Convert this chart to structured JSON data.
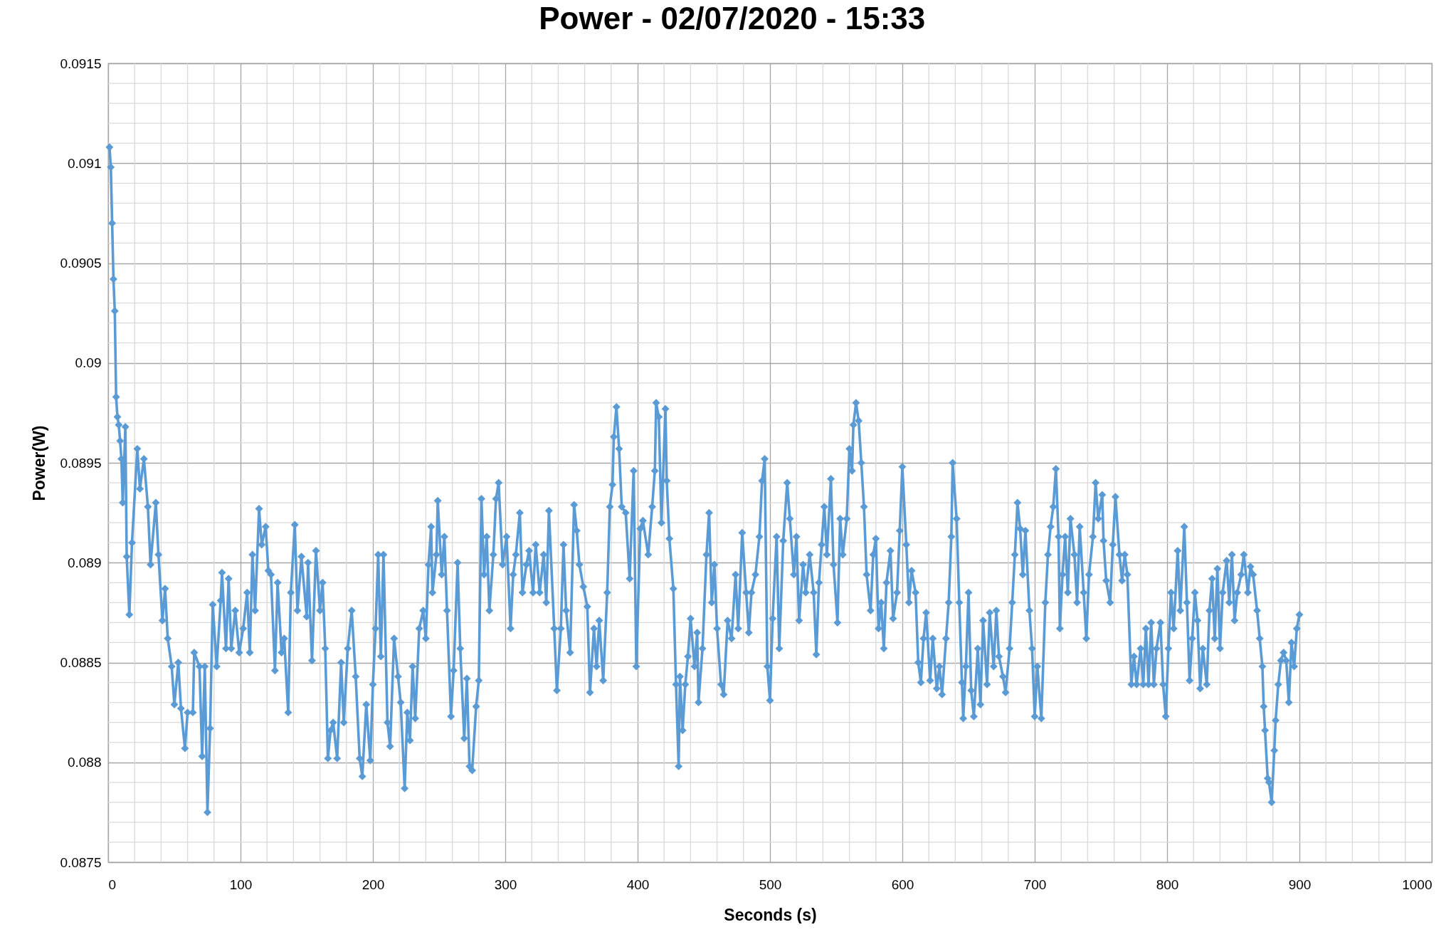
{
  "chart_data": {
    "type": "line",
    "title": "Power - 02/07/2020 - 15:33",
    "xlabel": "Seconds (s)",
    "ylabel": "Power(W)",
    "color": "#5b9bd5",
    "marker": "diamond",
    "line_style": "solid",
    "grid": true,
    "xlim": [
      0,
      1000
    ],
    "ylim": [
      0.0875,
      0.0915
    ],
    "xticks": [
      0,
      {
        "value": 20,
        "label": null
      },
      {
        "value": 40,
        "label": null
      },
      {
        "value": 60,
        "label": null
      },
      {
        "value": 80,
        "label": null
      },
      100,
      {
        "value": 120,
        "label": null
      },
      {
        "value": 140,
        "label": null
      },
      {
        "value": 160,
        "label": null
      },
      {
        "value": 180,
        "label": null
      },
      200,
      {
        "value": 220,
        "label": null
      },
      {
        "value": 240,
        "label": null
      },
      {
        "value": 260,
        "label": null
      },
      {
        "value": 280,
        "label": null
      },
      300,
      {
        "value": 320,
        "label": null
      },
      {
        "value": 340,
        "label": null
      },
      {
        "value": 360,
        "label": null
      },
      {
        "value": 380,
        "label": null
      },
      400,
      {
        "value": 420,
        "label": null
      },
      {
        "value": 440,
        "label": null
      },
      {
        "value": 460,
        "label": null
      },
      {
        "value": 480,
        "label": null
      },
      500,
      {
        "value": 520,
        "label": null
      },
      {
        "value": 540,
        "label": null
      },
      {
        "value": 560,
        "label": null
      },
      {
        "value": 580,
        "label": null
      },
      600,
      {
        "value": 620,
        "label": null
      },
      {
        "value": 640,
        "label": null
      },
      {
        "value": 660,
        "label": null
      },
      {
        "value": 680,
        "label": null
      },
      700,
      {
        "value": 720,
        "label": null
      },
      {
        "value": 740,
        "label": null
      },
      {
        "value": 760,
        "label": null
      },
      {
        "value": 780,
        "label": null
      },
      800,
      {
        "value": 820,
        "label": null
      },
      {
        "value": 840,
        "label": null
      },
      {
        "value": 860,
        "label": null
      },
      {
        "value": 880,
        "label": null
      },
      900,
      {
        "value": 920,
        "label": null
      },
      {
        "value": 940,
        "label": null
      },
      {
        "value": 960,
        "label": null
      },
      {
        "value": 980,
        "label": null
      },
      1000
    ],
    "yticks": [
      0.0875,
      {
        "value": 0.0876,
        "label": null
      },
      {
        "value": 0.0877,
        "label": null
      },
      {
        "value": 0.0878,
        "label": null
      },
      {
        "value": 0.0879,
        "label": null
      },
      0.088,
      {
        "value": 0.0881,
        "label": null
      },
      {
        "value": 0.0882,
        "label": null
      },
      {
        "value": 0.0883,
        "label": null
      },
      {
        "value": 0.0884,
        "label": null
      },
      0.0885,
      {
        "value": 0.0886,
        "label": null
      },
      {
        "value": 0.0887,
        "label": null
      },
      {
        "value": 0.0888,
        "label": null
      },
      {
        "value": 0.0889,
        "label": null
      },
      0.089,
      {
        "value": 0.0891,
        "label": null
      },
      {
        "value": 0.0892,
        "label": null
      },
      {
        "value": 0.0893,
        "label": null
      },
      {
        "value": 0.0894,
        "label": null
      },
      0.0895,
      {
        "value": 0.0896,
        "label": null
      },
      {
        "value": 0.0897,
        "label": null
      },
      {
        "value": 0.0898,
        "label": null
      },
      {
        "value": 0.0899,
        "label": null
      },
      0.09,
      {
        "value": 0.0901,
        "label": null
      },
      {
        "value": 0.0902,
        "label": null
      },
      {
        "value": 0.0903,
        "label": null
      },
      {
        "value": 0.0904,
        "label": null
      },
      0.0905,
      {
        "value": 0.0906,
        "label": null
      },
      {
        "value": 0.0907,
        "label": null
      },
      {
        "value": 0.0908,
        "label": null
      },
      {
        "value": 0.0909,
        "label": null
      },
      0.091,
      {
        "value": 0.0911,
        "label": null
      },
      {
        "value": 0.0912,
        "label": null
      },
      {
        "value": 0.0913,
        "label": null
      },
      {
        "value": 0.0914,
        "label": null
      },
      0.0915
    ],
    "x": [
      1,
      2,
      3,
      4,
      5,
      6,
      7,
      8,
      9,
      10,
      11,
      13,
      14,
      16,
      18,
      22,
      24,
      27,
      30,
      32,
      36,
      38,
      41,
      43,
      45,
      48,
      50,
      53,
      55,
      58,
      60,
      64,
      65,
      69,
      71,
      73,
      75,
      77,
      79,
      82,
      85,
      86,
      89,
      91,
      93,
      96,
      99,
      102,
      105,
      107,
      109,
      111,
      114,
      116,
      119,
      121,
      123,
      126,
      128,
      131,
      133,
      136,
      138,
      141,
      143,
      146,
      150,
      151,
      154,
      157,
      160,
      162,
      164,
      166,
      168,
      170,
      173,
      176,
      178,
      181,
      184,
      187,
      190,
      192,
      195,
      198,
      200,
      202,
      204,
      206,
      208,
      211,
      213,
      216,
      219,
      221,
      224,
      226,
      228,
      230,
      232,
      235,
      238,
      240,
      242,
      244,
      245,
      248,
      249,
      252,
      254,
      256,
      259,
      261,
      264,
      266,
      269,
      271,
      273,
      275,
      278,
      280,
      282,
      284,
      286,
      288,
      291,
      293,
      295,
      298,
      301,
      304,
      306,
      308,
      311,
      313,
      316,
      318,
      321,
      323,
      326,
      329,
      331,
      333,
      337,
      339,
      342,
      344,
      346,
      349,
      352,
      354,
      356,
      359,
      362,
      364,
      367,
      369,
      371,
      374,
      377,
      379,
      381,
      382,
      384,
      386,
      388,
      391,
      394,
      397,
      399,
      402,
      404,
      408,
      411,
      413,
      414,
      416,
      418,
      421,
      422,
      424,
      427,
      429,
      431,
      432,
      434,
      436,
      438,
      440,
      443,
      445,
      446,
      449,
      452,
      454,
      456,
      458,
      460,
      463,
      465,
      468,
      471,
      474,
      476,
      479,
      482,
      484,
      486,
      489,
      492,
      494,
      496,
      498,
      500,
      502,
      505,
      507,
      510,
      513,
      515,
      518,
      520,
      522,
      525,
      527,
      530,
      533,
      535,
      537,
      539,
      541,
      543,
      546,
      548,
      551,
      553,
      555,
      558,
      560,
      562,
      563,
      565,
      567,
      569,
      571,
      573,
      576,
      578,
      580,
      582,
      584,
      586,
      588,
      591,
      593,
      596,
      598,
      600,
      603,
      605,
      607,
      610,
      612,
      614,
      616,
      618,
      621,
      623,
      626,
      628,
      630,
      633,
      635,
      637,
      638,
      641,
      643,
      645,
      646,
      648,
      650,
      652,
      654,
      657,
      659,
      661,
      664,
      666,
      669,
      671,
      673,
      676,
      678,
      681,
      683,
      685,
      687,
      689,
      691,
      693,
      696,
      698,
      700,
      702,
      705,
      708,
      710,
      712,
      714,
      716,
      718,
      719,
      721,
      723,
      725,
      727,
      730,
      732,
      734,
      737,
      739,
      741,
      744,
      746,
      748,
      751,
      752,
      754,
      757,
      759,
      761,
      764,
      766,
      768,
      770,
      773,
      775,
      777,
      780,
      782,
      784,
      786,
      788,
      790,
      792,
      795,
      797,
      799,
      801,
      803,
      805,
      808,
      810,
      813,
      815,
      817,
      819,
      821,
      823,
      825,
      827,
      830,
      832,
      834,
      836,
      838,
      840,
      842,
      845,
      847,
      849,
      851,
      853,
      856,
      858,
      861,
      863,
      865,
      868,
      870,
      872,
      873,
      874,
      876,
      877,
      879,
      881,
      882,
      884,
      886,
      888,
      890,
      892,
      894,
      896,
      898,
      900
    ],
    "values": [
      0.09108,
      0.09098,
      0.0907,
      0.09042,
      0.09026,
      0.08983,
      0.08973,
      0.08969,
      0.08961,
      0.08952,
      0.0893,
      0.08968,
      0.08903,
      0.08874,
      0.0891,
      0.08957,
      0.08937,
      0.08952,
      0.08928,
      0.08899,
      0.0893,
      0.08904,
      0.08871,
      0.08887,
      0.08862,
      0.08848,
      0.08829,
      0.0885,
      0.08827,
      0.08807,
      0.08825,
      0.08825,
      0.08855,
      0.08848,
      0.08803,
      0.08848,
      0.08775,
      0.08817,
      0.08879,
      0.08848,
      0.08881,
      0.08895,
      0.08857,
      0.08892,
      0.08857,
      0.08876,
      0.08855,
      0.08867,
      0.08885,
      0.08855,
      0.08904,
      0.08876,
      0.08927,
      0.08909,
      0.08918,
      0.08896,
      0.08894,
      0.08846,
      0.0889,
      0.08855,
      0.08862,
      0.08825,
      0.08885,
      0.08919,
      0.08876,
      0.08903,
      0.08873,
      0.089,
      0.08851,
      0.08906,
      0.08876,
      0.0889,
      0.08857,
      0.08802,
      0.08816,
      0.0882,
      0.08802,
      0.0885,
      0.0882,
      0.08857,
      0.08876,
      0.08843,
      0.08802,
      0.08793,
      0.08829,
      0.08801,
      0.08839,
      0.08867,
      0.08904,
      0.08853,
      0.08904,
      0.0882,
      0.08808,
      0.08862,
      0.08843,
      0.0883,
      0.08787,
      0.08825,
      0.08811,
      0.08848,
      0.08822,
      0.08867,
      0.08876,
      0.08862,
      0.08899,
      0.08918,
      0.08885,
      0.08904,
      0.08931,
      0.08894,
      0.08913,
      0.08876,
      0.08823,
      0.08846,
      0.089,
      0.08857,
      0.08812,
      0.08842,
      0.08798,
      0.08796,
      0.08828,
      0.08841,
      0.08932,
      0.08894,
      0.08913,
      0.08876,
      0.08904,
      0.08932,
      0.0894,
      0.08899,
      0.08913,
      0.08867,
      0.08894,
      0.08904,
      0.08925,
      0.08885,
      0.08899,
      0.08906,
      0.08885,
      0.08909,
      0.08885,
      0.08904,
      0.0888,
      0.08926,
      0.08867,
      0.08836,
      0.08867,
      0.08909,
      0.08876,
      0.08855,
      0.08929,
      0.08916,
      0.08899,
      0.08888,
      0.08878,
      0.08835,
      0.08867,
      0.08848,
      0.08871,
      0.08841,
      0.08885,
      0.08928,
      0.08939,
      0.08963,
      0.08978,
      0.08957,
      0.08928,
      0.08925,
      0.08892,
      0.08946,
      0.08848,
      0.08917,
      0.08921,
      0.08904,
      0.08928,
      0.08946,
      0.0898,
      0.08973,
      0.0892,
      0.08977,
      0.08941,
      0.08912,
      0.08887,
      0.08839,
      0.08798,
      0.08843,
      0.08816,
      0.08839,
      0.08853,
      0.08872,
      0.08848,
      0.08865,
      0.0883,
      0.08857,
      0.08904,
      0.08925,
      0.0888,
      0.08899,
      0.08867,
      0.08839,
      0.08834,
      0.08871,
      0.08862,
      0.08894,
      0.08867,
      0.08915,
      0.08885,
      0.08865,
      0.08885,
      0.08894,
      0.08913,
      0.08941,
      0.08952,
      0.08848,
      0.08831,
      0.08872,
      0.08913,
      0.08857,
      0.08911,
      0.0894,
      0.08922,
      0.08894,
      0.08913,
      0.08871,
      0.08899,
      0.08885,
      0.08904,
      0.08885,
      0.08854,
      0.0889,
      0.08909,
      0.08928,
      0.08904,
      0.08942,
      0.08899,
      0.0887,
      0.08922,
      0.08904,
      0.08922,
      0.08957,
      0.08946,
      0.08969,
      0.0898,
      0.08971,
      0.0895,
      0.08928,
      0.08894,
      0.08876,
      0.08904,
      0.08912,
      0.08867,
      0.0888,
      0.08857,
      0.0889,
      0.08906,
      0.08872,
      0.08885,
      0.08916,
      0.08948,
      0.08909,
      0.0888,
      0.08896,
      0.08885,
      0.0885,
      0.0884,
      0.08862,
      0.08875,
      0.08841,
      0.08862,
      0.08837,
      0.08848,
      0.08834,
      0.08862,
      0.0888,
      0.08913,
      0.0895,
      0.08922,
      0.0888,
      0.0884,
      0.08822,
      0.08848,
      0.08885,
      0.08836,
      0.08823,
      0.08857,
      0.08829,
      0.08871,
      0.08839,
      0.08875,
      0.08848,
      0.08876,
      0.08853,
      0.08843,
      0.08835,
      0.08857,
      0.0888,
      0.08904,
      0.0893,
      0.08917,
      0.08894,
      0.08916,
      0.08876,
      0.08857,
      0.08823,
      0.08848,
      0.08822,
      0.0888,
      0.08904,
      0.08918,
      0.08928,
      0.08947,
      0.08913,
      0.08867,
      0.08894,
      0.08913,
      0.08885,
      0.08922,
      0.08904,
      0.0888,
      0.08918,
      0.08885,
      0.08862,
      0.08894,
      0.08913,
      0.0894,
      0.08922,
      0.08934,
      0.08911,
      0.08891,
      0.0888,
      0.08909,
      0.08933,
      0.08904,
      0.08891,
      0.08904,
      0.08894,
      0.08839,
      0.08853,
      0.08839,
      0.08857,
      0.08839,
      0.08867,
      0.08839,
      0.0887,
      0.08839,
      0.08857,
      0.0887,
      0.08839,
      0.08823,
      0.08857,
      0.08885,
      0.08867,
      0.08906,
      0.08876,
      0.08918,
      0.0888,
      0.08841,
      0.08862,
      0.08885,
      0.08871,
      0.08837,
      0.08857,
      0.08839,
      0.08876,
      0.08892,
      0.08862,
      0.08897,
      0.08857,
      0.08885,
      0.08901,
      0.0888,
      0.08904,
      0.08871,
      0.08885,
      0.08894,
      0.08904,
      0.08885,
      0.08898,
      0.08894,
      0.08876,
      0.08862,
      0.08848,
      0.08828,
      0.08816,
      0.08792,
      0.0879,
      0.0878,
      0.08806,
      0.08821,
      0.08839,
      0.08851,
      0.08855,
      0.08851,
      0.0883,
      0.0886,
      0.08848,
      0.08867,
      0.08874
    ]
  }
}
